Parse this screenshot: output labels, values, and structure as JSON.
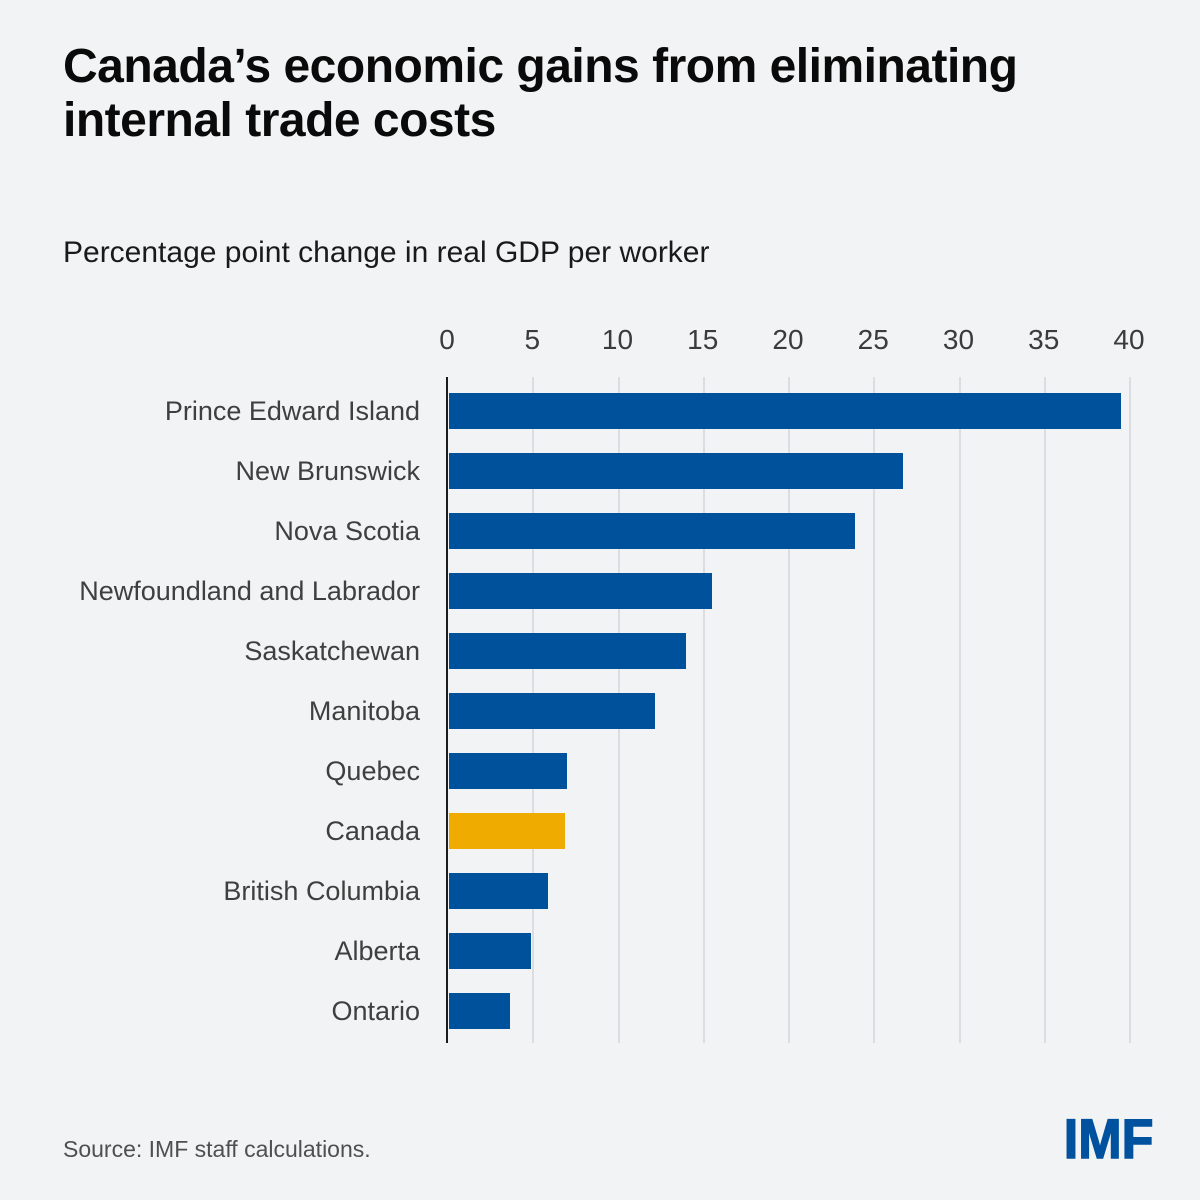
{
  "header": {
    "title": "Canada’s economic gains from eliminating internal trade costs",
    "title_lines": [
      "Canada’s economic gains from eliminating",
      "internal trade costs"
    ],
    "subtitle": "Percentage point change in real GDP per worker"
  },
  "footer": {
    "source": "Source: IMF staff calculations.",
    "logo_text": "IMF",
    "logo_color": "#00519E"
  },
  "colors": {
    "background": "#f2f3f4",
    "bar_blue": "#00519C",
    "bar_gold": "#F0AB00",
    "axis": "#1c1c1c",
    "gridline": "#dcdde0",
    "tick_label": "#3b3b3b",
    "category_label": "#3f3f3f"
  },
  "chart_data": {
    "type": "bar",
    "orientation": "horizontal",
    "title": "Canada’s economic gains from eliminating internal trade costs",
    "xlabel": "Percentage point change in real GDP per worker",
    "ylabel": "",
    "categories": [
      "Prince Edward Island",
      "New Brunswick",
      "Nova Scotia",
      "Newfoundland and Labrador",
      "Saskatchewan",
      "Manitoba",
      "Quebec",
      "Canada",
      "British Columbia",
      "Alberta",
      "Ontario"
    ],
    "values": [
      39.4,
      26.6,
      23.8,
      15.4,
      13.9,
      12.1,
      6.9,
      6.8,
      5.8,
      4.8,
      3.6
    ],
    "highlight_category": "Canada",
    "xlim": [
      0,
      40
    ],
    "xticks": [
      0,
      5,
      10,
      15,
      20,
      25,
      30,
      35,
      40
    ],
    "grid": true,
    "legend": false,
    "bar_color": "#00519C",
    "highlight_color": "#F0AB00"
  }
}
